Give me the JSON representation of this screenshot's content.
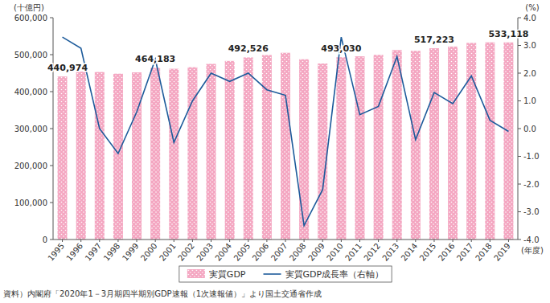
{
  "chart_data": {
    "type": "bar",
    "y_label": "(十億円)",
    "y2_label": "(%)",
    "x_label": "(年度)",
    "source": "資料）内閣府「2020年1－3月期四半期別GDP速報（1次速報値）」より国土交通省作成",
    "categories": [
      "1995",
      "1996",
      "1997",
      "1998",
      "1999",
      "2000",
      "2001",
      "2002",
      "2003",
      "2004",
      "2005",
      "2006",
      "2007",
      "2008",
      "2009",
      "2010",
      "2011",
      "2012",
      "2013",
      "2014",
      "2015",
      "2016",
      "2017",
      "2018",
      "2019"
    ],
    "series": [
      {
        "name": "実質GDP",
        "type": "bar",
        "color": "#f4a6c1",
        "values": [
          440974,
          454000,
          453000,
          448500,
          452000,
          464183,
          461800,
          466000,
          475000,
          483000,
          492526,
          499000,
          505000,
          487500,
          476000,
          493030,
          495500,
          499400,
          512400,
          510400,
          517223,
          521900,
          531800,
          533300,
          533118
        ],
        "value_labels": [
          "440,974",
          null,
          null,
          null,
          null,
          "464,183",
          null,
          null,
          null,
          null,
          "492,526",
          null,
          null,
          null,
          null,
          "493,030",
          null,
          null,
          null,
          null,
          "517,223",
          null,
          null,
          null,
          "533,118"
        ]
      },
      {
        "name": "実質GDP成長率（右軸）",
        "type": "line",
        "axis": "y2",
        "color": "#1d5b9b",
        "line_style": "solid",
        "values": [
          3.3,
          2.9,
          0.0,
          -0.9,
          0.6,
          2.5,
          -0.5,
          1.0,
          2.0,
          1.7,
          2.0,
          1.4,
          1.2,
          -3.5,
          -2.2,
          3.3,
          0.5,
          0.8,
          2.6,
          -0.4,
          1.3,
          0.9,
          1.9,
          0.3,
          -0.1
        ]
      }
    ],
    "ylim": [
      0,
      600000
    ],
    "yticks": [
      0,
      {
        "value": 100000,
        "label": "100,000"
      },
      {
        "value": 200000,
        "label": "200,000"
      },
      {
        "value": 300000,
        "label": "300,000"
      },
      {
        "value": 400000,
        "label": "400,000"
      },
      {
        "value": 500000,
        "label": "500,000"
      },
      {
        "value": 600000,
        "label": "600,000"
      }
    ],
    "y2lim": [
      -4,
      4
    ],
    "y2ticks": [
      {
        "value": -4,
        "label": "-4.0"
      },
      {
        "value": -3,
        "label": "-3.0"
      },
      {
        "value": -2,
        "label": "-2.0"
      },
      {
        "value": -1,
        "label": "-1.0"
      },
      {
        "value": 0,
        "label": "0.0"
      },
      {
        "value": 1,
        "label": "1.0"
      },
      {
        "value": 2,
        "label": "2.0"
      },
      {
        "value": 3,
        "label": "3.0"
      },
      {
        "value": 4,
        "label": "4.0"
      }
    ],
    "grid": false,
    "legend": "bottom",
    "data_labels": true
  }
}
